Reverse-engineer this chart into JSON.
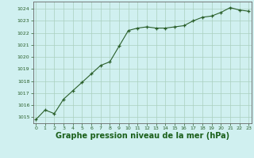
{
  "x": [
    0,
    1,
    2,
    3,
    4,
    5,
    6,
    7,
    8,
    9,
    10,
    11,
    12,
    13,
    14,
    15,
    16,
    17,
    18,
    19,
    20,
    21,
    22,
    23
  ],
  "y": [
    1014.8,
    1015.6,
    1015.3,
    1016.5,
    1017.2,
    1017.9,
    1018.6,
    1019.3,
    1019.6,
    1020.9,
    1022.2,
    1022.4,
    1022.5,
    1022.4,
    1022.4,
    1022.5,
    1022.6,
    1023.0,
    1023.3,
    1023.4,
    1023.7,
    1024.1,
    1023.9,
    1023.8
  ],
  "xlabel": "Graphe pression niveau de la mer (hPa)",
  "ylim_min": 1014.5,
  "ylim_max": 1024.6,
  "bg_color": "#d0f0f0",
  "line_color": "#2a5f2a",
  "marker": "+",
  "grid_color": "#aacfbf",
  "xlabel_color": "#1a5f1a",
  "tick_color": "#2a5f2a",
  "spine_color": "#666666",
  "xlabel_fontsize": 7.0,
  "tick_fontsize": 4.5,
  "yticks": [
    1015,
    1016,
    1017,
    1018,
    1019,
    1020,
    1021,
    1022,
    1023,
    1024
  ],
  "xlim_min": -0.3,
  "xlim_max": 23.3
}
